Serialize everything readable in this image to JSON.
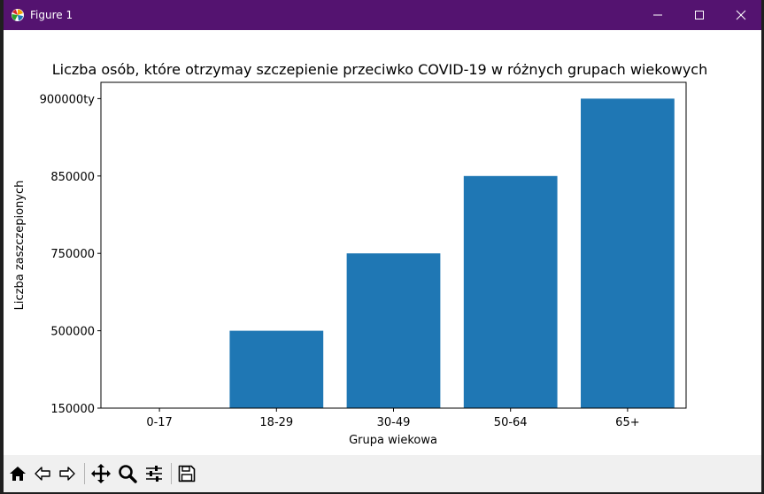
{
  "window": {
    "title": "Figure 1",
    "titlebar_color": "#541370",
    "icons": {
      "app": "matplotlib-icon",
      "minimize": "minimize-icon",
      "maximize": "maximize-icon",
      "close": "close-icon"
    }
  },
  "toolbar": {
    "buttons": [
      {
        "name": "home-button",
        "icon": "home-icon"
      },
      {
        "name": "back-button",
        "icon": "arrow-left-icon"
      },
      {
        "name": "forward-button",
        "icon": "arrow-right-icon"
      },
      {
        "name": "pan-button",
        "icon": "move-icon"
      },
      {
        "name": "zoom-button",
        "icon": "zoom-icon"
      },
      {
        "name": "configure-subplots-button",
        "icon": "sliders-icon"
      },
      {
        "name": "save-button",
        "icon": "save-icon"
      }
    ]
  },
  "chart_data": {
    "type": "bar",
    "title": "Liczba osób, które otrzymay szczepienie przeciwko COVID-19 w różnych grupach wiekowych",
    "xlabel": "Grupa wiekowa",
    "ylabel": "Liczba zaszczepionych",
    "categories": [
      "0-17",
      "18-29",
      "30-49",
      "50-64",
      "65+"
    ],
    "values": [
      "150000",
      "500000",
      "750000",
      "850000",
      "900000ty"
    ],
    "y_tick_labels": [
      "150000",
      "500000",
      "750000",
      "850000",
      "900000ty"
    ],
    "y_axis_kind": "categorical",
    "bar_color": "#1f77b4",
    "grid": false
  }
}
